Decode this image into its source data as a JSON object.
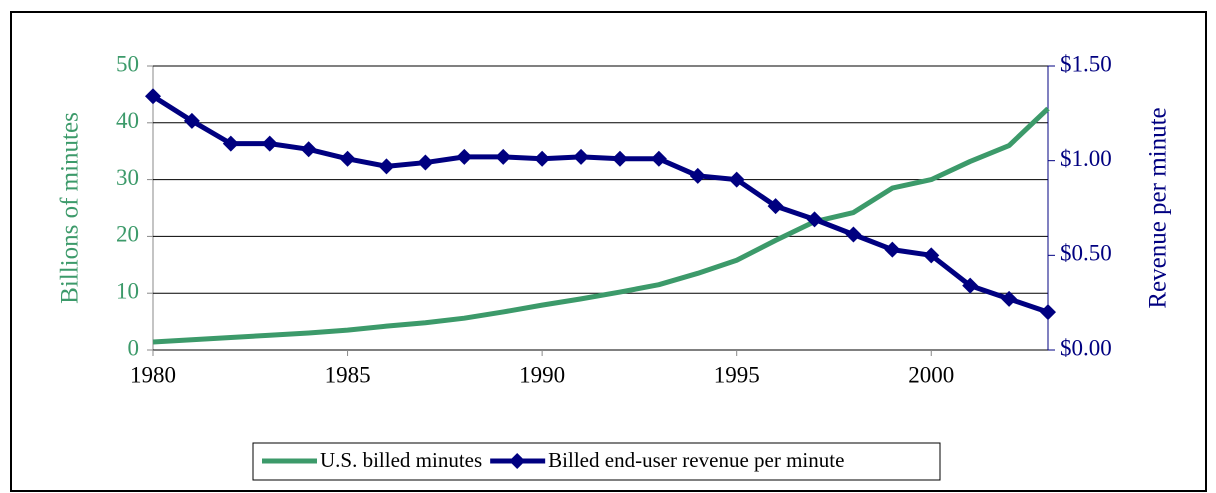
{
  "chart_data": {
    "type": "line",
    "x": [
      1980,
      1981,
      1982,
      1983,
      1984,
      1985,
      1986,
      1987,
      1988,
      1989,
      1990,
      1991,
      1992,
      1993,
      1994,
      1995,
      1996,
      1997,
      1998,
      1999,
      2000,
      2001,
      2002,
      2003
    ],
    "series": [
      {
        "name": "U.S. billed minutes",
        "color": "#3c9a6a",
        "axis": "y",
        "values": [
          1.4,
          1.8,
          2.2,
          2.6,
          3.0,
          3.5,
          4.2,
          4.8,
          5.6,
          6.7,
          7.9,
          9.0,
          10.2,
          11.5,
          13.5,
          15.8,
          19.3,
          22.6,
          24.2,
          28.5,
          30.0,
          33.2,
          36.0,
          42.5
        ]
      },
      {
        "name": "Billed end-user revenue per minute",
        "color": "#000080",
        "axis": "y2",
        "marker": "diamond",
        "values": [
          1.34,
          1.21,
          1.09,
          1.09,
          1.06,
          1.01,
          0.97,
          0.99,
          1.02,
          1.02,
          1.01,
          1.02,
          1.01,
          1.01,
          0.92,
          0.9,
          0.76,
          0.69,
          0.61,
          0.53,
          0.5,
          0.34,
          0.27,
          0.2
        ]
      }
    ],
    "y_label": "Billions of minutes",
    "y2_label": "Revenue per minute",
    "xlim": [
      1980,
      2003
    ],
    "xticks": [
      1980,
      1985,
      1990,
      1995,
      2000
    ],
    "ylim": [
      0,
      50
    ],
    "yticks": [
      0,
      10,
      20,
      30,
      40,
      50
    ],
    "y2lim": [
      0,
      1.5
    ],
    "y2ticks": [
      {
        "value": 0,
        "label": "$0.00"
      },
      {
        "value": 0.5,
        "label": "$0.50"
      },
      {
        "value": 1.0,
        "label": "$1.00"
      },
      {
        "value": 1.5,
        "label": "$1.50"
      }
    ],
    "grid": true,
    "legend": "bottom"
  }
}
